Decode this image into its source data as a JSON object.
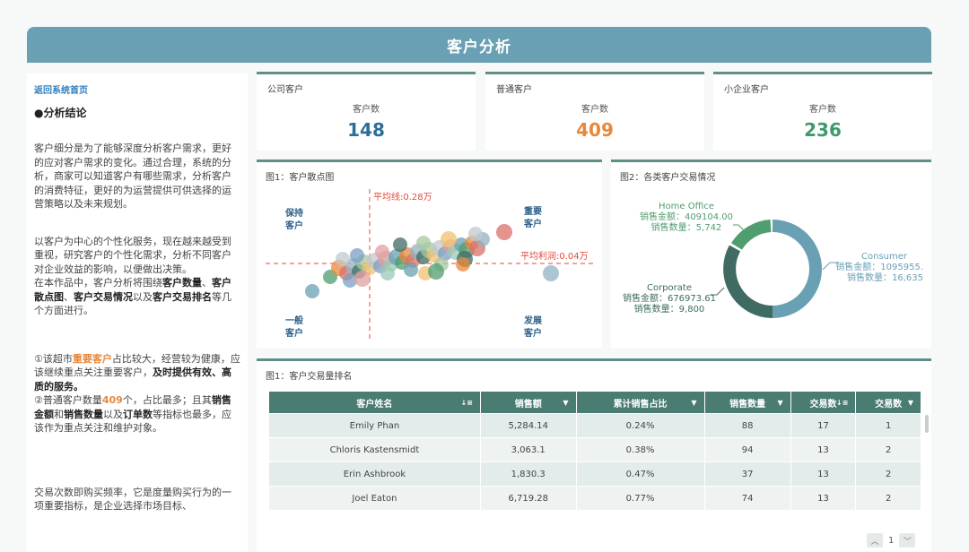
{
  "header": {
    "title": "客户分析"
  },
  "left": {
    "back_link": "返回系统首页",
    "section_title": "●分析结论",
    "para1": "客户细分是为了能够深度分析客户需求，更好的应对客户需求的变化。通过合理，系统的分析，商家可以知道客户有哪些需求，分析客户的消费特征，更好的为运营提供可供选择的运营策略以及未来规划。",
    "para2": "以客户为中心的个性化服务，现在越来越受到重视，研究客户的个性化需求，分析不同客户对企业效益的影响，以便做出决策。",
    "para3_a": "在本作品中，客户分析将围绕",
    "para3_b1": "客户数量",
    "para3_s1": "、",
    "para3_b2": "客户散点图",
    "para3_s2": "、",
    "para3_b3": "客户交易情况",
    "para3_s3": "以及",
    "para3_b4": "客户交易排名",
    "para3_c": "等几个方面进行。",
    "c1_a": "①该超市",
    "c1_hl": "重要客户",
    "c1_b": "占比较大，经营较为健康，应该继续重点关注重要客户，",
    "c1_bold": "及时提供有效、高质的服务。",
    "c2_a": "②普通客户数量",
    "c2_hl": "409",
    "c2_b": "个，占比最多；且其",
    "c2_bold1": "销售金额",
    "c2_c": "和",
    "c2_bold2": "销售数量",
    "c2_d": "以及",
    "c2_bold3": "订单数",
    "c2_e": "等指标也最多，应该作为重点关注和维护对象。",
    "para4": "交易次数即购买频率，它是度量购买行为的一项重要指标，是企业选择市场目标、"
  },
  "kpis": [
    {
      "category": "公司客户",
      "label": "客户数",
      "value": "148",
      "color": "#2d6e99"
    },
    {
      "category": "普通客户",
      "label": "客户数",
      "value": "409",
      "color": "#e8883a"
    },
    {
      "category": "小企业客户",
      "label": "客户数",
      "value": "236",
      "color": "#3d9a6a"
    }
  ],
  "scatter": {
    "title": "图1：客户散点图",
    "avg_x_label": "平均线:0.28万",
    "avg_y_label": "平均利润:0.04万",
    "q_tl": [
      "保持",
      "客户"
    ],
    "q_tr": [
      "重要",
      "客户"
    ],
    "q_bl": [
      "一般",
      "客户"
    ],
    "q_br": [
      "发展",
      "客户"
    ]
  },
  "donut": {
    "title": "图2：各类客户交易情况",
    "home_office": {
      "name": "Home Office",
      "amount": "销售金额：409104.00",
      "qty": "销售数量：5,742"
    },
    "consumer": {
      "name": "Consumer",
      "amount": "销售金额：1095955.",
      "qty": "销售数量：16,635"
    },
    "corporate": {
      "name": "Corporate",
      "amount": "销售金额：676973.61",
      "qty": "销售数量：9,800"
    }
  },
  "ranking": {
    "title": "图1：客户交易量排名",
    "columns": [
      "客户姓名",
      "销售额",
      "累计销售占比",
      "销售数量",
      "交易数",
      "交易数"
    ],
    "rows": [
      [
        "Emily Phan",
        "5,284.14",
        "0.24%",
        "88",
        "17",
        "1"
      ],
      [
        "Chloris Kastensmidt",
        "3,063.1",
        "0.38%",
        "94",
        "13",
        "2"
      ],
      [
        "Erin Ashbrook",
        "1,830.3",
        "0.47%",
        "37",
        "13",
        "2"
      ],
      [
        "Joel Eaton",
        "6,719.28",
        "0.77%",
        "74",
        "13",
        "2"
      ]
    ],
    "page": "1"
  }
}
